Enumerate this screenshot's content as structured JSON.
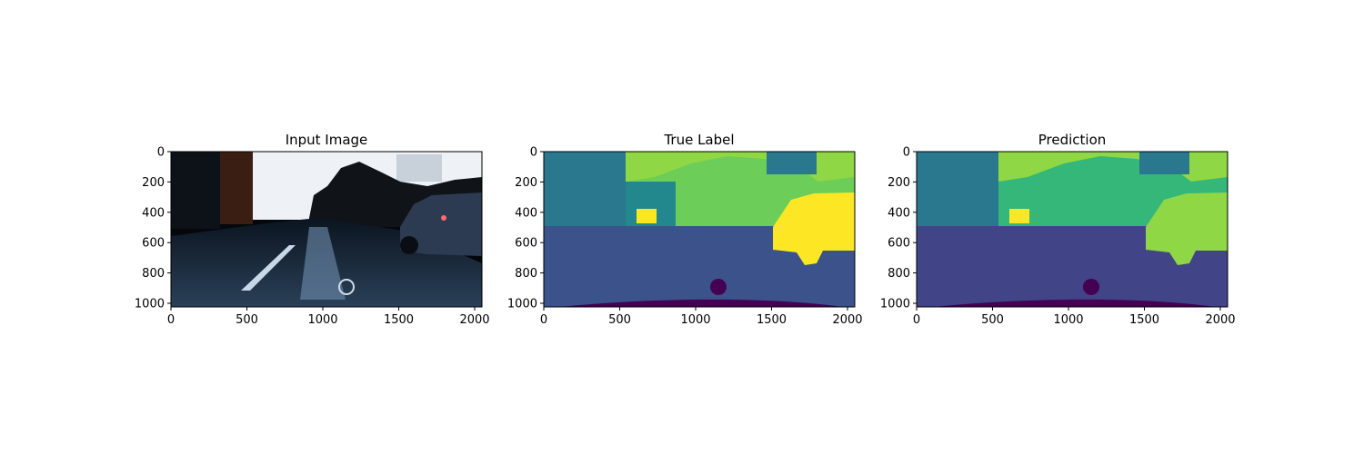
{
  "figure": {
    "panels": [
      {
        "title": "Input Image",
        "kind": "photo",
        "x_ticks": [
          "0",
          "500",
          "1000",
          "1500",
          "2000"
        ],
        "y_ticks": [
          "0",
          "200",
          "400",
          "600",
          "800",
          "1000"
        ]
      },
      {
        "title": "True Label",
        "kind": "segmentation",
        "x_ticks": [
          "0",
          "500",
          "1000",
          "1500",
          "2000"
        ],
        "y_ticks": [
          "0",
          "200",
          "400",
          "600",
          "800",
          "1000"
        ]
      },
      {
        "title": "Prediction",
        "kind": "segmentation",
        "x_ticks": [
          "0",
          "500",
          "1000",
          "1500",
          "2000"
        ],
        "y_ticks": [
          "0",
          "200",
          "400",
          "600",
          "800",
          "1000"
        ]
      }
    ],
    "image_extent": {
      "width": 2048,
      "height": 1024
    },
    "colors": {
      "axis": "#000000",
      "background": "#ffffff",
      "seg_purple": "#440154",
      "seg_road": "#3b528b",
      "seg_teal": "#2a788e",
      "seg_sea": "#23888e",
      "seg_green": "#35b779",
      "seg_lime": "#8fd744",
      "seg_yellow": "#fde725",
      "photo_dark": "#05070a",
      "photo_road": "#1a2a3a",
      "photo_sky": "#eef1f5",
      "photo_building": "#3a1e14",
      "photo_car": "#2d3b52"
    }
  }
}
